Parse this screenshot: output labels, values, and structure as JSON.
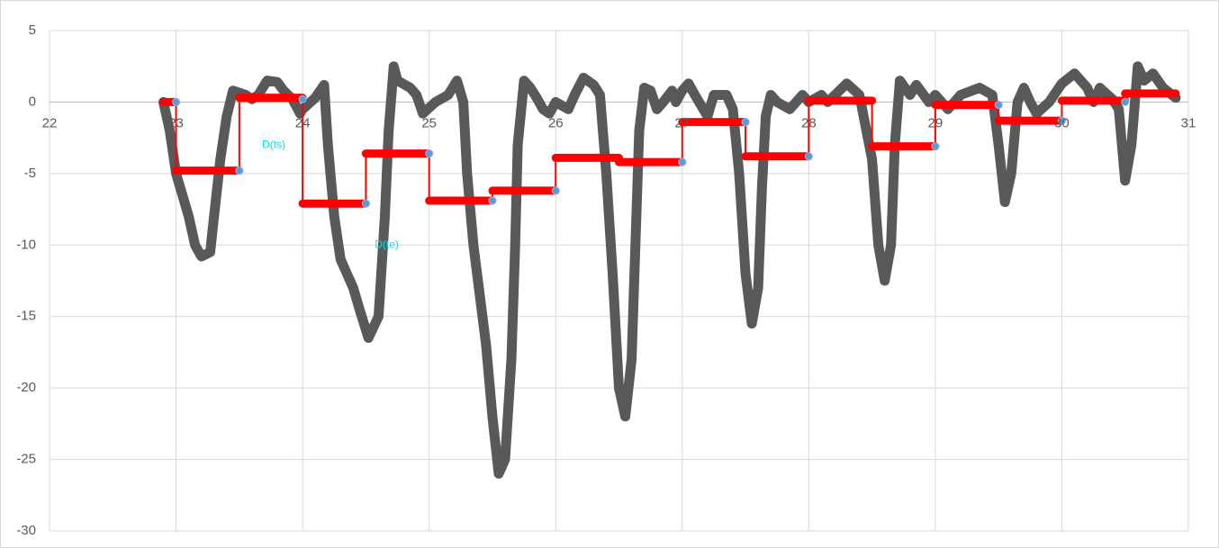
{
  "chart_data": {
    "type": "line",
    "xlim": [
      22,
      31
    ],
    "xticks": [
      22,
      23,
      24,
      25,
      26,
      27,
      28,
      29,
      30,
      31
    ],
    "ylim": [
      -30,
      5
    ],
    "yticks": [
      -30,
      -25,
      -20,
      -15,
      -10,
      -5,
      0,
      5
    ],
    "grid": true,
    "series": [
      {
        "style": "line",
        "color": "#595959",
        "x": [
          22.9,
          22.95,
          23.0,
          23.1,
          23.15,
          23.2,
          23.27,
          23.3,
          23.35,
          23.4,
          23.45,
          23.55,
          23.6,
          23.65,
          23.72,
          23.8,
          23.85,
          23.92,
          23.98,
          24.0,
          24.1,
          24.17,
          24.2,
          24.25,
          24.3,
          24.4,
          24.45,
          24.52,
          24.6,
          24.65,
          24.68,
          24.72,
          24.75,
          24.85,
          24.9,
          24.95,
          25.05,
          25.15,
          25.22,
          25.27,
          25.3,
          25.35,
          25.45,
          25.5,
          25.55,
          25.6,
          25.65,
          25.68,
          25.7,
          25.75,
          25.8,
          25.85,
          25.9,
          25.95,
          26.0,
          26.1,
          26.15,
          26.22,
          26.3,
          26.35,
          26.4,
          26.45,
          26.5,
          26.55,
          26.6,
          26.63,
          26.66,
          26.7,
          26.75,
          26.8,
          26.85,
          26.92,
          26.95,
          27.0,
          27.05,
          27.1,
          27.2,
          27.25,
          27.35,
          27.4,
          27.45,
          27.5,
          27.55,
          27.6,
          27.63,
          27.66,
          27.7,
          27.75,
          27.85,
          27.95,
          28.0,
          28.1,
          28.15,
          28.3,
          28.4,
          28.5,
          28.55,
          28.6,
          28.65,
          28.68,
          28.72,
          28.8,
          28.85,
          28.95,
          29.0,
          29.1,
          29.2,
          29.35,
          29.45,
          29.5,
          29.55,
          29.6,
          29.65,
          29.7,
          29.75,
          29.8,
          29.9,
          30.0,
          30.1,
          30.2,
          30.25,
          30.3,
          30.4,
          30.45,
          30.5,
          30.55,
          30.6,
          30.65,
          30.72,
          30.8,
          30.9
        ],
        "values": [
          0,
          -2,
          -5,
          -8,
          -10,
          -10.8,
          -10.5,
          -8,
          -4,
          -1,
          0.8,
          0.5,
          0.2,
          0.5,
          1.5,
          1.4,
          0.8,
          0.2,
          -0.8,
          -0.5,
          0.3,
          1.2,
          -3,
          -8,
          -11,
          -13,
          -14.5,
          -16.5,
          -15,
          -8,
          -2,
          2.5,
          1.5,
          1,
          0.5,
          -0.8,
          0,
          0.5,
          1.5,
          0,
          -5,
          -10,
          -17,
          -22,
          -26,
          -25,
          -18,
          -10,
          -3,
          1.5,
          1,
          0.3,
          -0.5,
          -0.8,
          0,
          -0.5,
          0.5,
          1.7,
          1.2,
          0.5,
          -5,
          -12,
          -20,
          -22,
          -18,
          -10,
          -2,
          1,
          0.8,
          -0.5,
          0,
          0.8,
          0,
          0.8,
          1.3,
          0.5,
          -1,
          0.5,
          0.5,
          -0.5,
          -5,
          -12,
          -15.5,
          -13,
          -6,
          -1,
          0.5,
          0,
          -0.5,
          0.5,
          0,
          0.5,
          0,
          1.3,
          0.5,
          -4,
          -10,
          -12.5,
          -10,
          -3,
          1.5,
          0.5,
          1.2,
          0,
          0.5,
          -0.5,
          0.5,
          1,
          0.5,
          -3,
          -7,
          -5,
          0,
          1,
          0,
          -0.8,
          0,
          1.3,
          2,
          1,
          0,
          1,
          0.2,
          -0.5,
          -5.5,
          -3,
          2.5,
          1.5,
          2,
          1,
          0.3
        ]
      },
      {
        "style": "step",
        "color": "#ff0000",
        "x": [
          22.9,
          23.0,
          23.5,
          24.0,
          24.5,
          25.0,
          25.5,
          26.0,
          26.5,
          27.0,
          27.5,
          28.0,
          28.5,
          29.0,
          29.5,
          30.0,
          30.5,
          30.9
        ],
        "values": [
          0,
          -4.8,
          0.3,
          -7.1,
          -3.6,
          -6.9,
          -6.2,
          -3.9,
          -4.2,
          -1.4,
          -3.8,
          0.1,
          -3.1,
          -0.2,
          -1.3,
          0.1,
          0.6,
          0.6
        ]
      },
      {
        "style": "markers",
        "color": "#5b9bd5",
        "x": [
          23.0,
          23.5,
          24.0,
          24.5,
          25.0,
          25.5,
          26.0,
          27.0,
          27.5,
          28.0,
          29.0,
          29.5,
          30.0,
          30.5
        ],
        "values": [
          0,
          -4.8,
          0.2,
          -7.1,
          -3.6,
          -6.9,
          -6.2,
          -4.2,
          -1.4,
          -3.8,
          -3.1,
          -0.2,
          -1.3,
          0
        ]
      }
    ],
    "annotations": [
      {
        "text": "D(ts)",
        "x": 23.68,
        "y": -3
      },
      {
        "text": "D(te)",
        "x": 24.57,
        "y": -10
      }
    ]
  }
}
